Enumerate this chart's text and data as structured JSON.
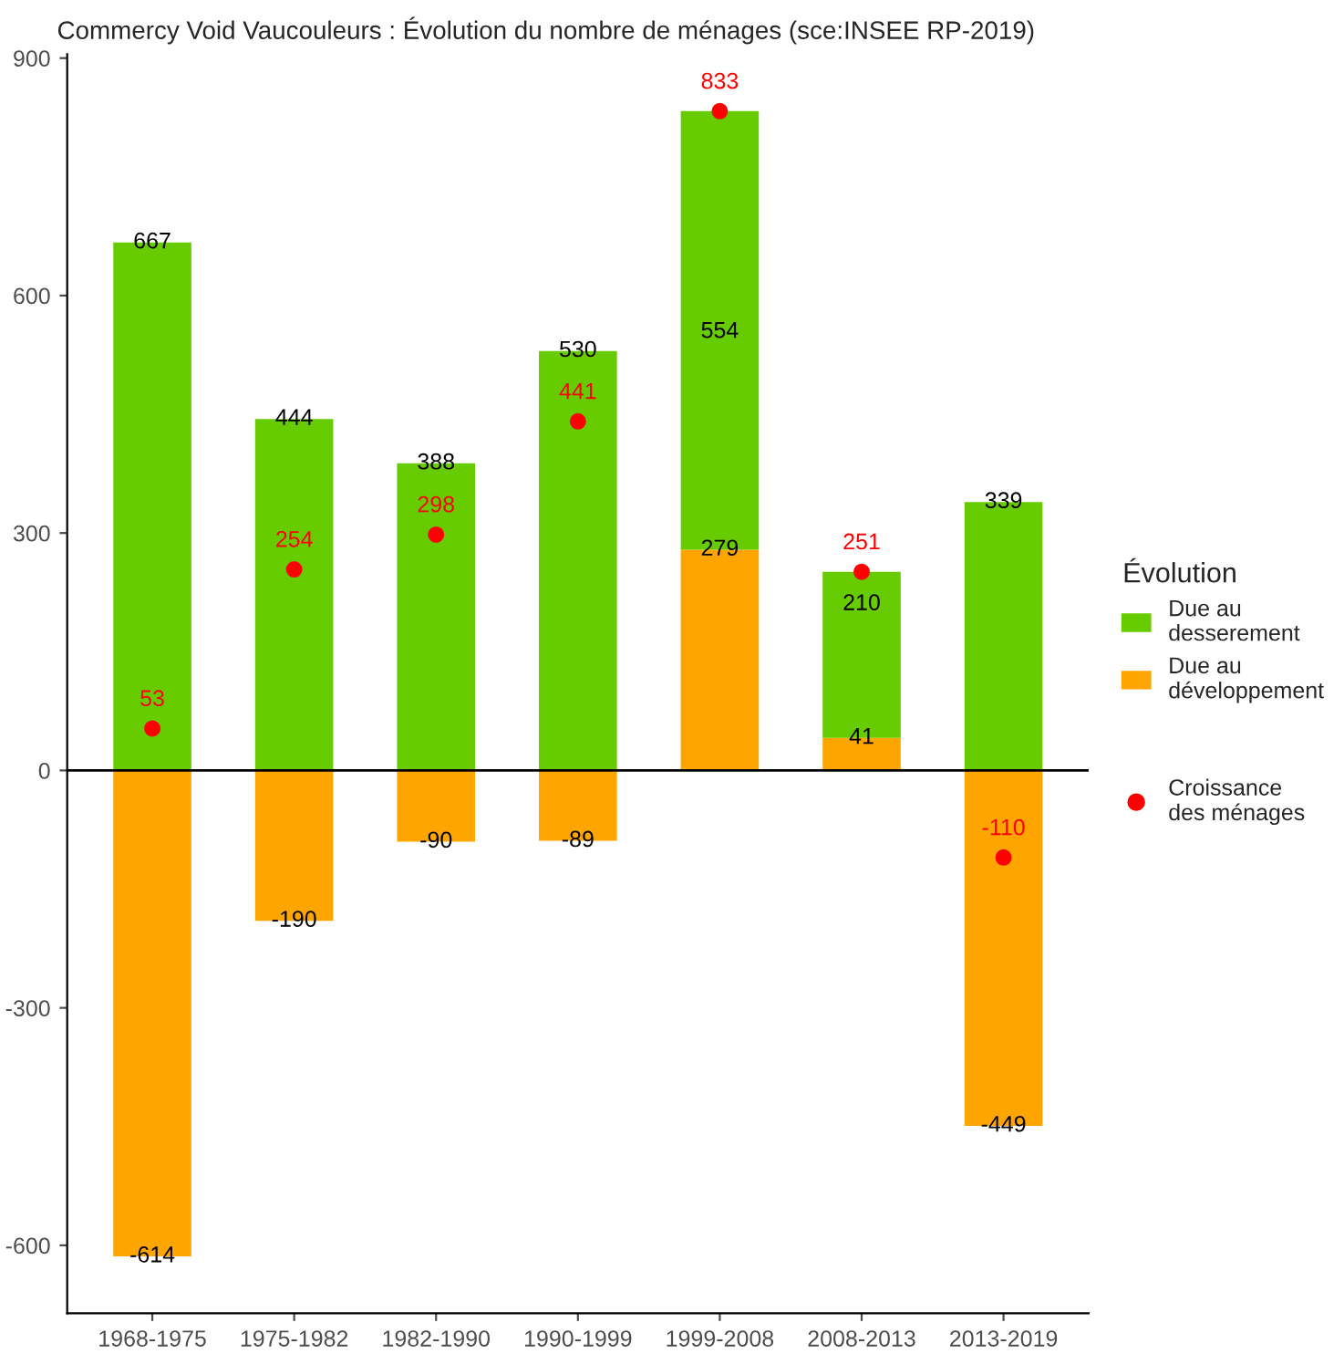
{
  "chart_data": {
    "type": "bar",
    "title": "Commercy Void Vaucouleurs : Évolution du nombre de ménages (sce:INSEE RP-2019)",
    "categories": [
      "1968-1975",
      "1975-1982",
      "1982-1990",
      "1990-1999",
      "1999-2008",
      "2008-2013",
      "2013-2019"
    ],
    "stacked": true,
    "data_labels": true,
    "legend": "right",
    "legend_title": "Évolution",
    "grid": false,
    "series": [
      {
        "name": "Due au\ndéveloppement",
        "color": "#ffa500",
        "values": [
          -614,
          -190,
          -90,
          -89,
          279,
          41,
          -449
        ]
      },
      {
        "name": "Due au\ndesserement",
        "color": "#66cc00",
        "values": [
          667,
          444,
          388,
          530,
          554,
          210,
          339
        ]
      },
      {
        "name": "Croissance\ndes ménages",
        "type": "scatter",
        "color": "#ff0000",
        "values": [
          53,
          254,
          298,
          441,
          833,
          251,
          -110
        ]
      }
    ],
    "ylim": [
      -686,
      905
    ],
    "yticks": [
      -600,
      -300,
      0,
      300,
      600,
      900
    ],
    "ref_lines": [
      {
        "axis": "y",
        "value": 0,
        "color": "#000000"
      }
    ]
  }
}
